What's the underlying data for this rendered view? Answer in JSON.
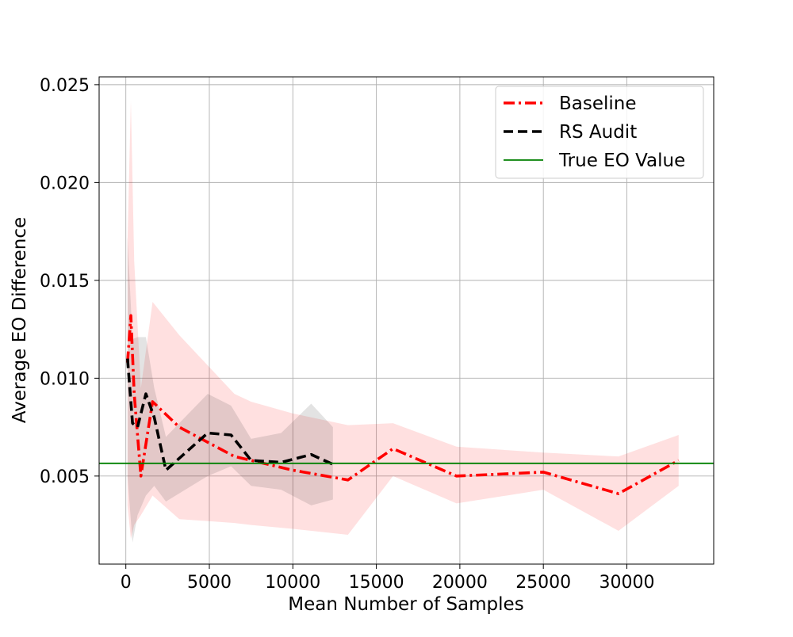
{
  "chart_data": {
    "type": "line",
    "title": "",
    "xlabel": "Mean Number of Samples",
    "ylabel": "Average EO Difference",
    "xlim": [
      -1600,
      35200
    ],
    "ylim": [
      0.0005,
      0.0254
    ],
    "xticks": [
      0,
      5000,
      10000,
      15000,
      20000,
      25000,
      30000
    ],
    "xtick_labels": [
      "0",
      "5000",
      "10000",
      "15000",
      "20000",
      "25000",
      "30000"
    ],
    "yticks": [
      0.005,
      0.01,
      0.015,
      0.02,
      0.025
    ],
    "ytick_labels": [
      "0.005",
      "0.010",
      "0.015",
      "0.020",
      "0.025"
    ],
    "grid": true,
    "legend_position": "top-right",
    "series": [
      {
        "name": "Baseline",
        "color": "#ff0000",
        "style": "dash-dot",
        "x": [
          100,
          300,
          500,
          900,
          1600,
          3200,
          6500,
          7500,
          10000,
          13300,
          16000,
          19800,
          25000,
          29500,
          33100
        ],
        "y": [
          0.0108,
          0.0132,
          0.0092,
          0.005,
          0.0088,
          0.0075,
          0.006,
          0.0058,
          0.0053,
          0.0048,
          0.0064,
          0.005,
          0.0052,
          0.0041,
          0.0058
        ],
        "band_lower": [
          0.0035,
          0.0018,
          0.0025,
          0.003,
          0.004,
          0.0028,
          0.0026,
          0.0025,
          0.0023,
          0.002,
          0.005,
          0.0036,
          0.0043,
          0.0022,
          0.0045
        ],
        "band_upper": [
          0.017,
          0.0242,
          0.016,
          0.0095,
          0.0139,
          0.0122,
          0.0092,
          0.0088,
          0.0082,
          0.0076,
          0.0077,
          0.0065,
          0.0062,
          0.006,
          0.0071
        ]
      },
      {
        "name": "RS Audit",
        "color": "#000000",
        "style": "dashed",
        "x": [
          100,
          400,
          700,
          1200,
          1700,
          2400,
          4900,
          6300,
          7500,
          9300,
          11100,
          12400
        ],
        "y": [
          0.011,
          0.0077,
          0.0075,
          0.0092,
          0.008,
          0.0053,
          0.0072,
          0.0071,
          0.0058,
          0.0057,
          0.0061,
          0.0056
        ],
        "band_lower": [
          0.005,
          0.0016,
          0.003,
          0.004,
          0.0045,
          0.0037,
          0.005,
          0.0055,
          0.0045,
          0.0043,
          0.0035,
          0.0038
        ],
        "band_upper": [
          0.0172,
          0.012,
          0.0121,
          0.0121,
          0.0095,
          0.007,
          0.0092,
          0.0086,
          0.0069,
          0.0072,
          0.0087,
          0.0075
        ]
      },
      {
        "name": "True EO Value",
        "color": "#008000",
        "style": "solid",
        "y_constant": 0.00565
      }
    ]
  }
}
